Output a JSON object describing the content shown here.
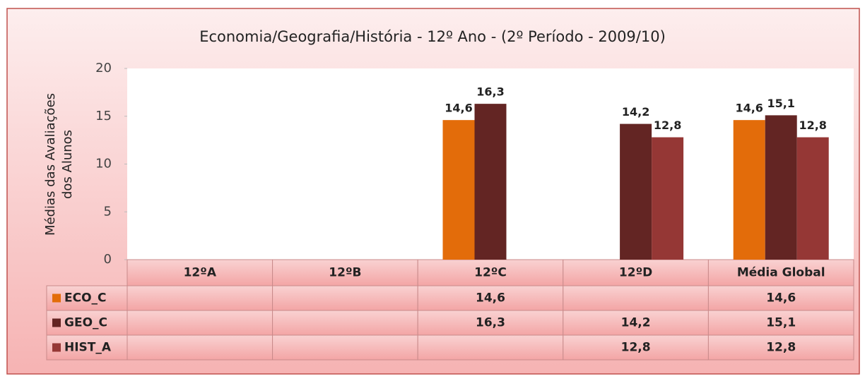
{
  "chart_data": {
    "type": "bar",
    "title": "Economia/Geografia/História - 12º Ano - (2º Período - 2009/10)",
    "ylabel": [
      "Médias das Avaliações",
      "dos Alunos"
    ],
    "categories": [
      "12ºA",
      "12ºB",
      "12ºC",
      "12ºD",
      "Média Global"
    ],
    "series": [
      {
        "name": "ECO_C",
        "color": "#e36c0a",
        "values": [
          null,
          null,
          14.6,
          null,
          14.6
        ],
        "value_labels": [
          null,
          null,
          "14,6",
          null,
          "14,6"
        ]
      },
      {
        "name": "GEO_C",
        "color": "#632523",
        "values": [
          null,
          null,
          16.3,
          14.2,
          15.1
        ],
        "value_labels": [
          null,
          null,
          "16,3",
          "14,2",
          "15,1"
        ]
      },
      {
        "name": "HIST_A",
        "color": "#953735",
        "values": [
          null,
          null,
          null,
          12.8,
          12.8
        ],
        "value_labels": [
          null,
          null,
          null,
          "12,8",
          "12,8"
        ]
      }
    ],
    "ylim": [
      0,
      20
    ],
    "yticks": [
      0,
      5,
      10,
      15,
      20
    ],
    "grid": false,
    "data_table": true
  }
}
